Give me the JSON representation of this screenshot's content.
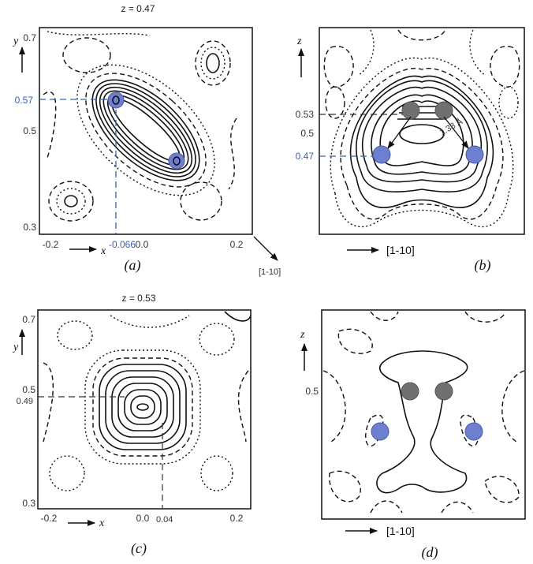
{
  "panel_a": {
    "title": "z = 0.47",
    "caption": "(a)",
    "x_ticks": [
      "-0.2",
      "0.0",
      "0.2"
    ],
    "y_ticks": [
      "0.7",
      "0.5",
      "0.3"
    ],
    "x_label": "x",
    "y_label": "y",
    "marker_y": "0.57",
    "marker_x": "-0.066",
    "direction": "[1-10]"
  },
  "panel_b": {
    "caption": "(b)",
    "z_label": "z",
    "z_ticks": [
      "0.53",
      "0.5",
      "0.47"
    ],
    "distance": "1.38 Å",
    "direction": "[1-10]"
  },
  "panel_c": {
    "title": "z = 0.53",
    "caption": "(c)",
    "x_ticks": [
      "-0.2",
      "0.0",
      "0.2"
    ],
    "y_ticks": [
      "0.7",
      "0.5",
      "0.3"
    ],
    "x_label": "x",
    "y_label": "y",
    "marker_y": "0.49",
    "marker_x": "0.04"
  },
  "panel_d": {
    "caption": "(d)",
    "z_label": "z",
    "z_tick": "0.5",
    "direction": "[1-10]"
  },
  "colors": {
    "blue_atom": "#6d7fcf",
    "grey_atom": "#707070",
    "guide_blue": "#3a5fb0"
  }
}
